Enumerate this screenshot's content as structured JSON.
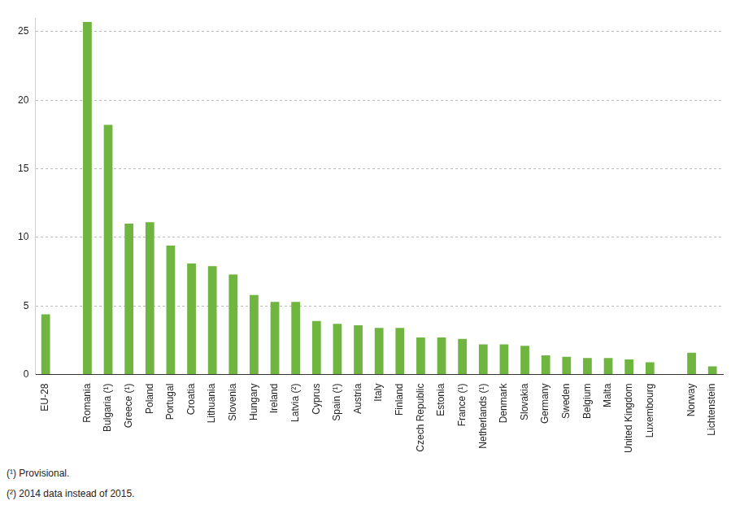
{
  "chart_data": {
    "type": "bar",
    "categories": [
      "EU-28",
      null,
      "Romania",
      "Bulgaria (¹)",
      "Greece (¹)",
      "Poland",
      "Portugal",
      "Croatia",
      "Lithuania",
      "Slovenia",
      "Hungary",
      "Ireland",
      "Latvia (²)",
      "Cyprus",
      "Spain (¹)",
      "Austria",
      "Italy",
      "Finland",
      "Czech Republic",
      "Estonia",
      "France (¹)",
      "Netherlands (¹)",
      "Denmark",
      "Slovakia",
      "Germany",
      "Sweden",
      "Belgium",
      "Malta",
      "United Kingdom",
      "Luxembourg",
      null,
      "Norway",
      "Lichtenstein"
    ],
    "values": [
      4.4,
      null,
      25.7,
      18.2,
      11.0,
      11.1,
      9.4,
      8.1,
      7.9,
      7.3,
      5.8,
      5.3,
      5.3,
      3.9,
      3.7,
      3.6,
      3.4,
      3.4,
      2.7,
      2.7,
      2.6,
      2.2,
      2.2,
      2.1,
      1.4,
      1.3,
      1.2,
      1.2,
      1.1,
      0.9,
      null,
      1.6,
      0.6
    ],
    "color": "#71b541",
    "ylim": [
      0,
      26
    ],
    "yticks": [
      0,
      5,
      10,
      15,
      20,
      25
    ],
    "grid": true,
    "annotations": [
      "(¹) Provisional.",
      "(²) 2014 data instead of 2015."
    ]
  }
}
